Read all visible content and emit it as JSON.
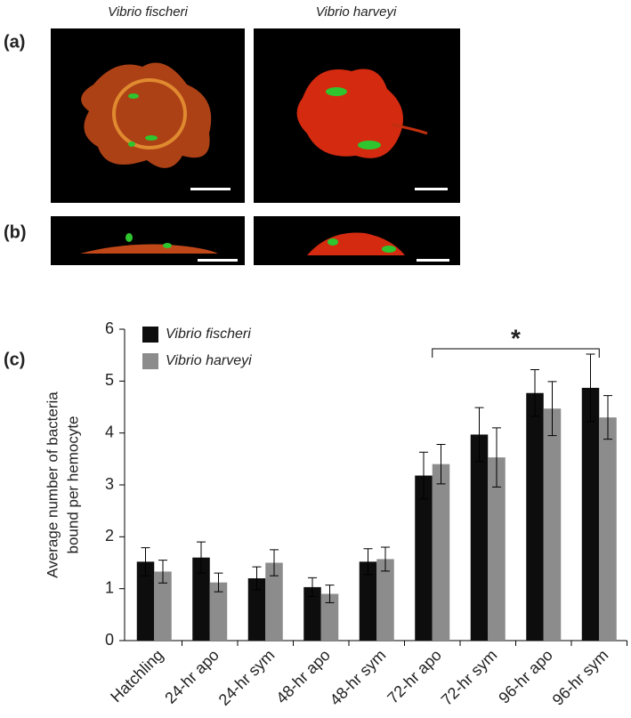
{
  "panel_labels": [
    "(a)",
    "(b)",
    "(c)"
  ],
  "column_titles": [
    "Vibrio fischeri",
    "Vibrio harveyi"
  ],
  "chart_data": {
    "type": "bar",
    "y_label": [
      "Average number of bacteria",
      "bound per hemocyte"
    ],
    "categories": [
      "Hatchling",
      "24-hr apo",
      "24-hr sym",
      "48-hr apo",
      "48-hr sym",
      "72-hr apo",
      "72-hr sym",
      "96-hr apo",
      "96-hr sym"
    ],
    "series": [
      {
        "name": "Vibrio fischeri",
        "color": "#0d0d0d",
        "values": [
          1.52,
          1.6,
          1.2,
          1.03,
          1.52,
          3.18,
          3.97,
          4.77,
          4.87
        ],
        "errors": [
          0.27,
          0.3,
          0.22,
          0.18,
          0.25,
          0.45,
          0.52,
          0.45,
          0.65
        ]
      },
      {
        "name": "Vibrio harveyi",
        "color": "#8c8c8c",
        "values": [
          1.33,
          1.12,
          1.5,
          0.9,
          1.57,
          3.4,
          3.53,
          4.47,
          4.3
        ],
        "errors": [
          0.22,
          0.18,
          0.25,
          0.17,
          0.23,
          0.38,
          0.57,
          0.52,
          0.42
        ]
      }
    ],
    "ylim": [
      0,
      6
    ],
    "yticks": [
      0,
      1,
      2,
      3,
      4,
      5,
      6
    ],
    "annotation": "*"
  }
}
